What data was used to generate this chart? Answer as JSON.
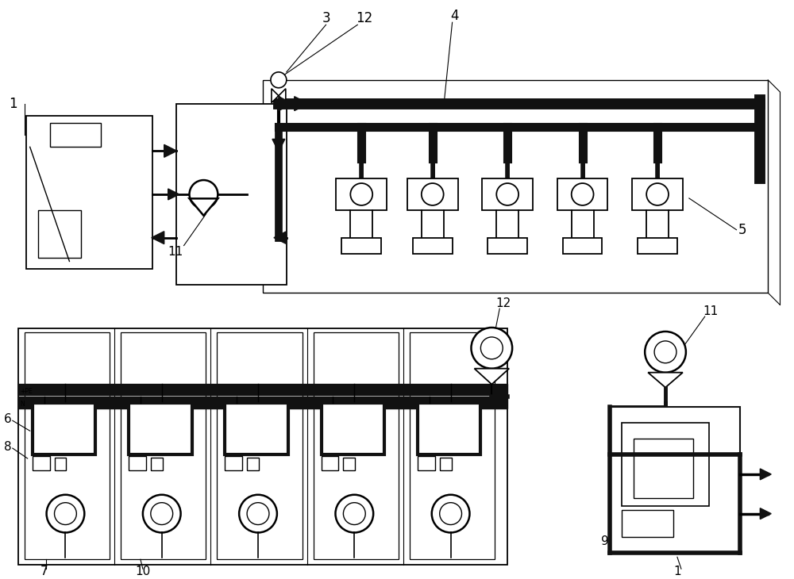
{
  "bg_color": "#ffffff",
  "lc": "#000000",
  "figsize": [
    10.0,
    7.3
  ],
  "dpi": 100
}
